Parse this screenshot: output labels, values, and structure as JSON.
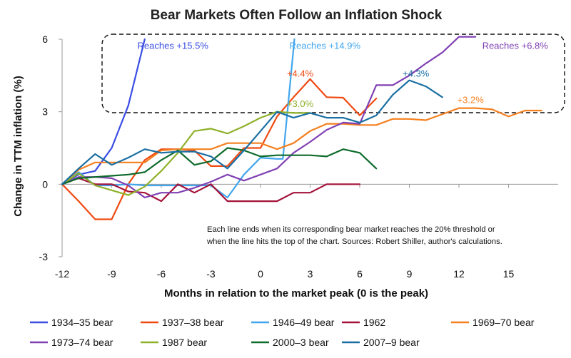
{
  "chart_data": {
    "type": "line",
    "title": "Bear Markets Often Follow an Inflation Shock",
    "xlabel": "Months in relation to the market peak (0 is the peak)",
    "ylabel": "Change in TTM inflation (%)",
    "xlim": [
      -12,
      18
    ],
    "ylim": [
      -3,
      6
    ],
    "xticks": [
      -12,
      -9,
      -6,
      -3,
      0,
      3,
      6,
      9,
      12,
      15
    ],
    "yticks": [
      -3,
      0,
      3,
      6
    ],
    "grid": false,
    "legend_position": "bottom",
    "note": [
      "Each line ends when its corresponding bear market reaches the 20% threshold or",
      "when the line hits the top of the chart. Sources: Robert Shiller, author's calculations."
    ],
    "series": [
      {
        "name": "1934–35 bear",
        "color": "#3a4de3",
        "x": [
          -12,
          -11,
          -10,
          -9,
          -8,
          -7
        ],
        "y": [
          0,
          0.4,
          0.55,
          1.5,
          3.25,
          6
        ],
        "label": {
          "text": "Reaches +15.5%",
          "x": -5.3,
          "y": 5.75
        }
      },
      {
        "name": "1937–38 bear",
        "color": "#f04a12",
        "x": [
          -12,
          -11,
          -10,
          -9,
          -8,
          -7,
          -6,
          -5,
          -4,
          -3,
          -2,
          -1,
          0,
          1,
          2,
          3,
          4,
          5,
          6,
          7
        ],
        "y": [
          0,
          -0.7,
          -1.45,
          -1.45,
          0,
          1,
          1.45,
          1.45,
          1.4,
          0.75,
          0.75,
          1.5,
          1.5,
          2.8,
          3.6,
          4.35,
          3.6,
          3.58,
          2.85,
          3.55
        ],
        "label": {
          "text": "+4.4%",
          "x": 2.4,
          "y": 4.6
        }
      },
      {
        "name": "1946–49 bear",
        "color": "#41a6ee",
        "x": [
          -12,
          -11,
          -10,
          -9,
          -8,
          -7,
          -6,
          -5,
          -4,
          -3,
          -2,
          -1,
          0,
          1,
          1.35,
          2.05
        ],
        "y": [
          0,
          0.5,
          -0.05,
          -0.05,
          0,
          -0.05,
          -0.05,
          -0.05,
          -0.05,
          -0.05,
          -0.55,
          0.4,
          1.1,
          1.05,
          1.05,
          6
        ],
        "label": {
          "text": "Reaches +14.9%",
          "x": 3.9,
          "y": 5.75
        }
      },
      {
        "name": "1962",
        "color": "#a5123a",
        "x": [
          -12,
          -11,
          -10,
          -9,
          -8,
          -7,
          -6,
          -5,
          -4,
          -3,
          -2,
          -1,
          0,
          1,
          2,
          3,
          4,
          5,
          6
        ],
        "y": [
          0,
          0.25,
          0,
          0,
          -0.3,
          -0.35,
          -0.7,
          0,
          -0.35,
          0,
          -0.7,
          -0.7,
          -0.7,
          -0.7,
          -0.35,
          -0.35,
          0,
          0,
          0
        ]
      },
      {
        "name": "1969–70 bear",
        "color": "#f4801f",
        "x": [
          -12,
          -11,
          -10,
          -9,
          -8,
          -7,
          -6,
          -5,
          -4,
          -3,
          -2,
          -1,
          0,
          1,
          2,
          3,
          4,
          5,
          6,
          7,
          8,
          9,
          10,
          11,
          12,
          13,
          14,
          15,
          16,
          17
        ],
        "y": [
          0,
          0.6,
          0.9,
          0.9,
          0.9,
          0.9,
          1.4,
          1.45,
          1.45,
          1.45,
          1.7,
          1.7,
          1.7,
          1.45,
          1.7,
          2.2,
          2.5,
          2.5,
          2.45,
          2.45,
          2.7,
          2.7,
          2.65,
          2.9,
          3.15,
          3.15,
          3.1,
          2.8,
          3.05,
          3.05
        ],
        "label": {
          "text": "+3.2%",
          "x": 12.7,
          "y": 3.5
        }
      },
      {
        "name": "1973–74 bear",
        "color": "#8041b3",
        "x": [
          -12,
          -11,
          -10,
          -9,
          -8,
          -7,
          -6,
          -5,
          -4,
          -3,
          -2,
          -1,
          0,
          1,
          2,
          3,
          4,
          5,
          6,
          7,
          8,
          9,
          10,
          11,
          12,
          13
        ],
        "y": [
          0,
          0.3,
          0.3,
          0.25,
          -0.05,
          -0.55,
          -0.35,
          -0.35,
          -0.15,
          0.1,
          0.4,
          0.15,
          0.4,
          0.65,
          1.3,
          1.75,
          2.25,
          2.55,
          2.5,
          4.1,
          4.1,
          4.5,
          5.0,
          5.45,
          6.15,
          6.15
        ],
        "label": {
          "text": "Reaches +6.8%",
          "x": 15.4,
          "y": 5.75
        }
      },
      {
        "name": "1987 bear",
        "color": "#8fb12a",
        "x": [
          -12,
          -11,
          -10,
          -9,
          -8,
          -7,
          -6,
          -5,
          -4,
          -3,
          -2,
          -1,
          0,
          1,
          2,
          3
        ],
        "y": [
          0,
          0.45,
          -0.05,
          -0.25,
          -0.45,
          -0.1,
          0.55,
          1.3,
          2.2,
          2.3,
          2.1,
          2.4,
          2.75,
          3.0,
          2.95,
          2.95
        ],
        "label": {
          "text": "+3.0%",
          "x": 2.4,
          "y": 3.35
        }
      },
      {
        "name": "2000–3 bear",
        "color": "#0d6b2b",
        "x": [
          -12,
          -11,
          -10,
          -9,
          -8,
          -7,
          -6,
          -5,
          -4,
          -3,
          -2,
          -1,
          0,
          1,
          2,
          3,
          4,
          5,
          6,
          7
        ],
        "y": [
          0,
          0.25,
          0.3,
          0.35,
          0.4,
          0.5,
          1.0,
          1.4,
          0.8,
          0.95,
          1.5,
          1.4,
          1.15,
          1.2,
          1.2,
          1.2,
          1.15,
          1.45,
          1.3,
          0.65
        ]
      },
      {
        "name": "2007–9 bear",
        "color": "#1a6fa2",
        "x": [
          -12,
          -11,
          -10,
          -9,
          -8,
          -7,
          -6,
          -5,
          -4,
          -3,
          -2,
          -1,
          0,
          1,
          2,
          3,
          4,
          5,
          6,
          7,
          8,
          9,
          10,
          11
        ],
        "y": [
          0,
          0.65,
          1.25,
          0.8,
          1.1,
          1.45,
          1.3,
          1.35,
          1.35,
          1.15,
          0.65,
          1.4,
          2.2,
          3.0,
          2.75,
          2.95,
          2.75,
          2.75,
          2.55,
          2.85,
          3.7,
          4.3,
          4.05,
          3.6
        ],
        "label": {
          "text": "+4.3%",
          "x": 9.4,
          "y": 4.6
        }
      }
    ]
  }
}
